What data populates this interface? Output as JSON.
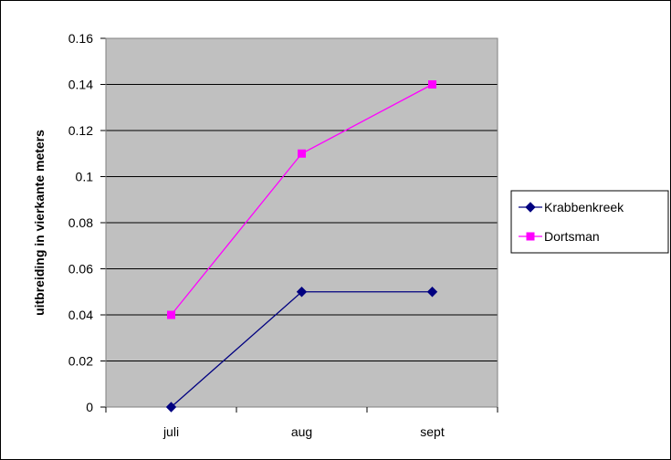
{
  "chart_data": {
    "type": "line",
    "title": "",
    "xlabel": "",
    "ylabel": "uitbreiding in vierkante meters",
    "categories": [
      "juli",
      "aug",
      "sept"
    ],
    "ylim": [
      0,
      0.16
    ],
    "yticks": [
      "0",
      "0.02",
      "0.04",
      "0.06",
      "0.08",
      "0.1",
      "0.12",
      "0.14",
      "0.16"
    ],
    "grid": true,
    "legend": "right",
    "plot_background": "#c0c0c0",
    "series": [
      {
        "name": "Krabbenkreek",
        "values": [
          0,
          0.05,
          0.05
        ],
        "color": "#000080",
        "marker": "diamond"
      },
      {
        "name": "Dortsman",
        "values": [
          0.04,
          0.11,
          0.14
        ],
        "color": "#ff00ff",
        "marker": "square"
      }
    ]
  }
}
